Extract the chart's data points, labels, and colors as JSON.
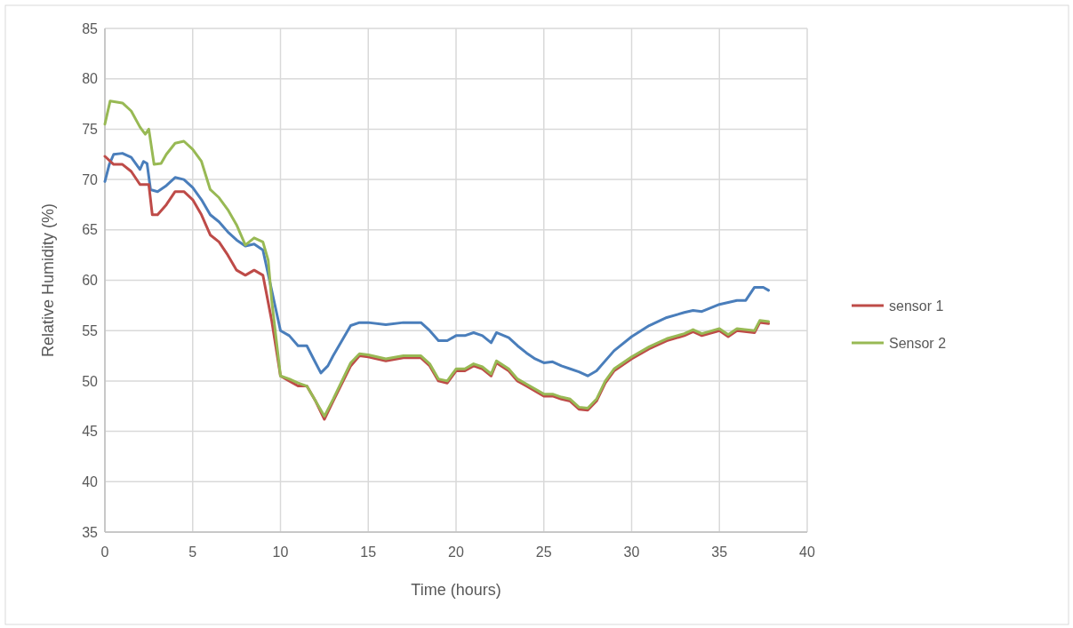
{
  "chart_data": {
    "type": "line",
    "xlabel": "Time (hours)",
    "ylabel": "Relative Humidity (%)",
    "xlim": [
      0,
      40
    ],
    "xticks": [
      0,
      5,
      10,
      15,
      20,
      25,
      30,
      35,
      40
    ],
    "ylim": [
      35,
      85
    ],
    "yticks": [
      35,
      40,
      45,
      50,
      55,
      60,
      65,
      70,
      75,
      80,
      85
    ],
    "grid": true,
    "legend": "right",
    "marker": "none",
    "line_style": "solid",
    "series": [
      {
        "color": "#4a7ebb",
        "x": [
          0,
          0.25,
          0.5,
          1,
          1.5,
          2,
          2.2,
          2.4,
          2.6,
          3,
          3.5,
          4,
          4.5,
          5,
          5.5,
          6,
          6.5,
          7,
          7.5,
          8,
          8.5,
          9,
          9.5,
          10,
          10.5,
          11,
          11.5,
          12,
          12.3,
          12.7,
          13,
          13.5,
          14,
          14.5,
          15,
          16,
          17,
          17.5,
          18,
          18.5,
          19,
          19.5,
          20,
          20.5,
          21,
          21.5,
          22,
          22.3,
          23,
          23.5,
          24,
          24.5,
          25,
          25.5,
          26,
          26.5,
          27,
          27.5,
          28,
          29,
          30,
          31,
          32,
          33,
          33.5,
          34,
          35,
          36,
          36.5,
          37,
          37.5,
          37.8
        ],
        "values": [
          69.8,
          71.5,
          72.5,
          72.6,
          72.2,
          71,
          71.8,
          71.6,
          69,
          68.8,
          69.4,
          70.2,
          70,
          69.2,
          68,
          66.5,
          65.8,
          64.8,
          64,
          63.4,
          63.6,
          63,
          59,
          55,
          54.5,
          53.5,
          53.5,
          51.8,
          50.8,
          51.5,
          52.5,
          54,
          55.5,
          55.8,
          55.8,
          55.6,
          55.8,
          55.8,
          55.8,
          55,
          54,
          54,
          54.5,
          54.5,
          54.8,
          54.5,
          53.8,
          54.8,
          54.3,
          53.5,
          52.8,
          52.2,
          51.8,
          51.9,
          51.5,
          51.2,
          50.9,
          50.5,
          51,
          53,
          54.4,
          55.5,
          56.3,
          56.8,
          57,
          56.9,
          57.6,
          58,
          58,
          59.3,
          59.3,
          59
        ]
      },
      {
        "name": "sensor 1",
        "color": "#be4b48",
        "x": [
          0,
          0.5,
          1,
          1.5,
          2,
          2.5,
          2.7,
          3,
          3.5,
          4,
          4.5,
          5,
          5.5,
          6,
          6.5,
          7,
          7.5,
          8,
          8.5,
          9,
          9.5,
          10,
          10.5,
          11,
          11.5,
          12,
          12.5,
          13,
          14,
          14.5,
          15,
          16,
          17,
          18,
          18.5,
          19,
          19.5,
          20,
          20.5,
          21,
          21.5,
          22,
          22.3,
          23,
          23.5,
          24,
          25,
          25.5,
          26,
          26.5,
          27,
          27.5,
          28,
          28.5,
          29,
          30,
          31,
          32,
          33,
          33.5,
          34,
          35,
          35.5,
          36,
          37,
          37.3,
          37.8
        ],
        "values": [
          72.3,
          71.5,
          71.5,
          70.8,
          69.5,
          69.5,
          66.5,
          66.5,
          67.5,
          68.8,
          68.8,
          68,
          66.5,
          64.5,
          63.8,
          62.5,
          61,
          60.5,
          61,
          60.5,
          56,
          50.5,
          50,
          49.5,
          49.5,
          48,
          46.2,
          48,
          51.5,
          52.5,
          52.4,
          52,
          52.3,
          52.3,
          51.5,
          50,
          49.8,
          51,
          51,
          51.5,
          51.2,
          50.5,
          51.8,
          51,
          50,
          49.5,
          48.5,
          48.5,
          48.2,
          48,
          47.2,
          47.1,
          48,
          49.8,
          51,
          52.2,
          53.2,
          54,
          54.5,
          54.9,
          54.5,
          55,
          54.4,
          55,
          54.8,
          55.8,
          55.7
        ]
      },
      {
        "name": "Sensor 2",
        "color": "#98b954",
        "x": [
          0,
          0.3,
          1,
          1.5,
          2,
          2.3,
          2.5,
          2.8,
          3.2,
          3.5,
          4,
          4.5,
          5,
          5.5,
          6,
          6.5,
          7,
          7.5,
          8,
          8.5,
          9,
          9.3,
          9.5,
          10,
          10.5,
          11,
          11.5,
          12,
          12.5,
          13,
          14,
          14.5,
          15,
          16,
          17,
          18,
          18.5,
          19,
          19.5,
          20,
          20.5,
          21,
          21.5,
          22,
          22.3,
          23,
          23.5,
          24,
          25,
          25.5,
          26,
          26.5,
          27,
          27.5,
          28,
          28.5,
          29,
          30,
          31,
          32,
          33,
          33.5,
          34,
          35,
          35.5,
          36,
          37,
          37.3,
          37.8
        ],
        "values": [
          75.5,
          77.8,
          77.6,
          76.8,
          75.2,
          74.5,
          75,
          71.5,
          71.6,
          72.5,
          73.6,
          73.8,
          73,
          71.8,
          69,
          68.2,
          67,
          65.5,
          63.5,
          64.2,
          63.8,
          62,
          58,
          50.5,
          50.2,
          49.8,
          49.5,
          48,
          46.5,
          48.2,
          51.8,
          52.7,
          52.6,
          52.2,
          52.5,
          52.5,
          51.7,
          50.2,
          50,
          51.2,
          51.2,
          51.7,
          51.4,
          50.7,
          52,
          51.2,
          50.2,
          49.7,
          48.7,
          48.7,
          48.4,
          48.2,
          47.4,
          47.3,
          48.2,
          50,
          51.2,
          52.4,
          53.4,
          54.2,
          54.7,
          55.1,
          54.7,
          55.2,
          54.6,
          55.2,
          55,
          56,
          55.9
        ]
      }
    ]
  }
}
